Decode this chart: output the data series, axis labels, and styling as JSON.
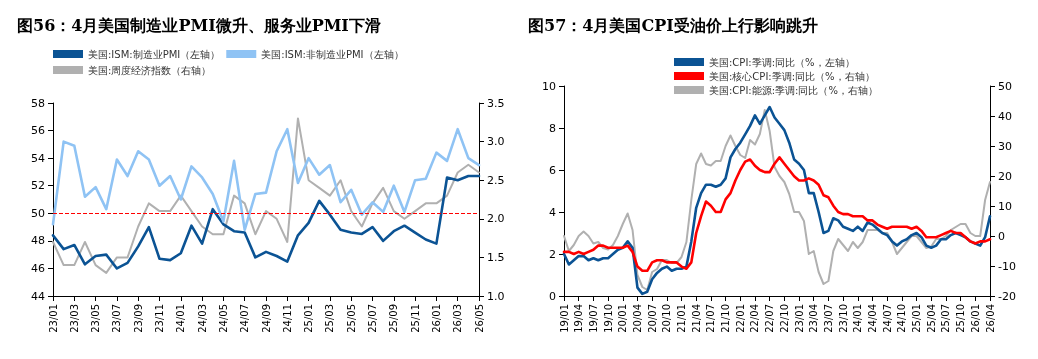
{
  "chart_data": [
    {
      "type": "line",
      "title": "图56：4月美国制造业PMI微升、服务业PMI下滑",
      "categories": [
        "23/01",
        null,
        "23/03",
        null,
        "23/05",
        null,
        "23/07",
        null,
        "23/09",
        null,
        "23/11",
        null,
        "24/01",
        null,
        "24/03",
        null,
        "24/05",
        null,
        "24/07",
        null,
        "24/09",
        null,
        "24/11",
        null,
        "25/01",
        null,
        "25/03",
        null,
        "25/05",
        null,
        "25/07",
        null,
        "25/09",
        null,
        "25/11",
        null,
        "26/01",
        null,
        "26/03",
        null,
        "26/05"
      ],
      "series": [
        {
          "name": "美国:ISM:制造业PMI（左轴）",
          "color": "#0b5394",
          "values": [
            48.4,
            47.4,
            47.7,
            46.3,
            46.9,
            47.0,
            46.0,
            46.4,
            47.6,
            49.0,
            46.7,
            46.6,
            47.1,
            49.1,
            47.8,
            50.3,
            49.2,
            48.7,
            48.6,
            46.8,
            47.2,
            46.9,
            46.5,
            48.4,
            49.3,
            50.9,
            49.9,
            48.8,
            48.6,
            48.5,
            49.0,
            48.0,
            48.7,
            49.1,
            48.6,
            48.1,
            47.8,
            52.6,
            52.4,
            52.7,
            52.7
          ]
        },
        {
          "name": "美国:ISM:非制造业PMI（左轴）",
          "color": "#8fc3f4",
          "values": [
            49.2,
            55.2,
            54.9,
            51.2,
            51.9,
            50.3,
            53.9,
            52.7,
            54.5,
            53.9,
            52.0,
            52.7,
            51.0,
            53.4,
            52.6,
            51.4,
            49.4,
            53.8,
            48.8,
            51.4,
            51.5,
            54.5,
            56.1,
            52.2,
            54.0,
            52.8,
            53.5,
            50.8,
            51.7,
            49.9,
            50.8,
            50.1,
            52.0,
            50.1,
            52.4,
            52.5,
            54.4,
            53.8,
            56.1,
            54.0,
            53.5
          ]
        },
        {
          "name": "美国:周度经济指数（右轴）",
          "color": "#b0b0b0",
          "axis": "y2",
          "values": [
            1.7,
            1.4,
            1.4,
            1.7,
            1.4,
            1.3,
            1.5,
            1.5,
            1.9,
            2.2,
            2.1,
            2.1,
            2.3,
            2.1,
            1.9,
            1.8,
            1.8,
            2.3,
            2.2,
            1.8,
            2.1,
            2.0,
            1.7,
            3.3,
            2.5,
            2.4,
            2.3,
            2.5,
            2.1,
            1.9,
            2.2,
            2.4,
            2.1,
            2.0,
            2.1,
            2.2,
            2.2,
            2.3,
            2.6,
            2.7,
            2.6
          ]
        }
      ],
      "ylim": [
        44,
        58
      ],
      "yticks": [
        44,
        46,
        48,
        50,
        52,
        54,
        56,
        58
      ],
      "y2lim": [
        1.0,
        3.5
      ],
      "y2ticks": [
        {
          "value": 1.0,
          "label": "1.0"
        },
        1.5,
        {
          "value": 2.0,
          "label": "2.0"
        },
        2.5,
        {
          "value": 3.0,
          "label": "3.0"
        },
        3.5
      ],
      "ref_lines": [
        {
          "axis": "y",
          "value": 50,
          "color": "#ff0000",
          "line_style": "dashed"
        }
      ],
      "legend": "top left",
      "grid": false,
      "marker": "none",
      "line_style": "solid"
    },
    {
      "type": "line",
      "title": "图57：4月美国CPI受油价上行影响跳升",
      "categories": [
        "19/01",
        null,
        null,
        "19/04",
        null,
        null,
        "19/07",
        null,
        null,
        "19/10",
        null,
        null,
        "20/01",
        null,
        null,
        "20/04",
        null,
        null,
        "20/07",
        null,
        null,
        "20/10",
        null,
        null,
        "21/01",
        null,
        null,
        "21/04",
        null,
        null,
        "21/07",
        null,
        null,
        "21/10",
        null,
        null,
        "22/01",
        null,
        null,
        "22/04",
        null,
        null,
        "22/07",
        null,
        null,
        "22/10",
        null,
        null,
        "23/01",
        null,
        null,
        "23/04",
        null,
        null,
        "23/07",
        null,
        null,
        "23/10",
        null,
        null,
        "24/01",
        null,
        null,
        "24/04",
        null,
        null,
        "24/07",
        null,
        null,
        "24/10",
        null,
        null,
        "25/01",
        null,
        null,
        "25/04",
        null,
        null,
        "25/07",
        null,
        null,
        "25/10",
        null,
        null,
        "26/01",
        null,
        null,
        "26/04"
      ],
      "series": [
        {
          "name": "美国:CPI:季调:同比（%，左轴）",
          "color": "#0b5394",
          "values": [
            2.0,
            1.5,
            1.7,
            1.9,
            1.9,
            1.7,
            1.8,
            1.7,
            1.8,
            1.8,
            2.0,
            2.2,
            2.3,
            2.6,
            2.3,
            0.4,
            0.1,
            0.2,
            0.8,
            1.1,
            1.3,
            1.4,
            1.2,
            1.3,
            1.3,
            1.4,
            2.6,
            4.2,
            4.9,
            5.3,
            5.3,
            5.2,
            5.3,
            5.6,
            6.6,
            7.0,
            7.3,
            7.7,
            8.1,
            8.6,
            8.2,
            8.6,
            9.0,
            8.5,
            8.2,
            7.9,
            7.3,
            6.5,
            6.3,
            6.0,
            4.9,
            4.9,
            4.0,
            3.0,
            3.1,
            3.7,
            3.6,
            3.3,
            3.2,
            3.1,
            3.3,
            3.1,
            3.5,
            3.4,
            3.2,
            3.0,
            2.9,
            2.6,
            2.4,
            2.6,
            2.7,
            2.9,
            3.0,
            2.8,
            2.4,
            2.3,
            2.4,
            2.7,
            2.7,
            2.9,
            3.0,
            2.9,
            2.8,
            2.6,
            2.5,
            2.4,
            2.8,
            3.8
          ]
        },
        {
          "name": "美国:核心CPI:季调:同比（%，右轴）",
          "color": "#ff0000",
          "values": [
            2.1,
            2.1,
            2.0,
            2.1,
            2.0,
            2.1,
            2.2,
            2.4,
            2.4,
            2.3,
            2.3,
            2.3,
            2.3,
            2.4,
            2.1,
            1.4,
            1.2,
            1.2,
            1.6,
            1.7,
            1.7,
            1.6,
            1.6,
            1.6,
            1.4,
            1.3,
            1.6,
            3.0,
            3.8,
            4.5,
            4.3,
            4.0,
            4.0,
            4.6,
            4.9,
            5.5,
            6.0,
            6.4,
            6.5,
            6.2,
            6.0,
            5.9,
            5.9,
            6.3,
            6.6,
            6.3,
            6.0,
            5.7,
            5.5,
            5.5,
            5.6,
            5.5,
            5.3,
            4.8,
            4.7,
            4.3,
            4.0,
            3.9,
            3.9,
            3.8,
            3.8,
            3.8,
            3.6,
            3.6,
            3.4,
            3.3,
            3.2,
            3.3,
            3.3,
            3.3,
            3.3,
            3.2,
            3.3,
            3.1,
            2.8,
            2.8,
            2.8,
            2.9,
            3.0,
            3.1,
            3.0,
            3.0,
            2.8,
            2.6,
            2.5,
            2.6,
            2.6,
            2.7
          ]
        },
        {
          "name": "美国:CPI:能源:季调:同比（%，右轴）",
          "color": "#b0b0b0",
          "axis": "y2",
          "values": [
            0,
            -5,
            -3,
            0,
            1.5,
            0,
            -2.5,
            -2,
            -4,
            -4.5,
            -3,
            0,
            4,
            7.5,
            2,
            -13,
            -17,
            -18,
            -12,
            -11,
            -8,
            -8,
            -9,
            -9,
            -7,
            -2,
            12,
            24,
            27.5,
            24,
            23.5,
            25,
            25,
            30,
            33.5,
            30,
            27,
            26,
            32,
            30.5,
            34,
            42,
            35,
            23,
            20,
            18,
            14,
            8,
            8,
            5,
            -6,
            -5,
            -12,
            -16,
            -15,
            -5,
            -1,
            -3,
            -5,
            -2,
            -4,
            -2,
            2,
            2,
            2,
            1,
            1,
            -2,
            -6,
            -4,
            -2,
            0,
            0,
            -2,
            -4,
            -3.5,
            -1,
            -1,
            0,
            2,
            3,
            4,
            4,
            1,
            0,
            0,
            12,
            18
          ]
        }
      ],
      "ylim": [
        0,
        10
      ],
      "yticks": [
        0,
        2,
        4,
        6,
        8,
        10
      ],
      "y2lim": [
        -20,
        50
      ],
      "y2ticks": [
        -20,
        -10,
        0,
        10,
        20,
        30,
        40,
        50
      ],
      "legend": "top",
      "grid": false,
      "marker": "none",
      "line_style": "solid"
    }
  ]
}
